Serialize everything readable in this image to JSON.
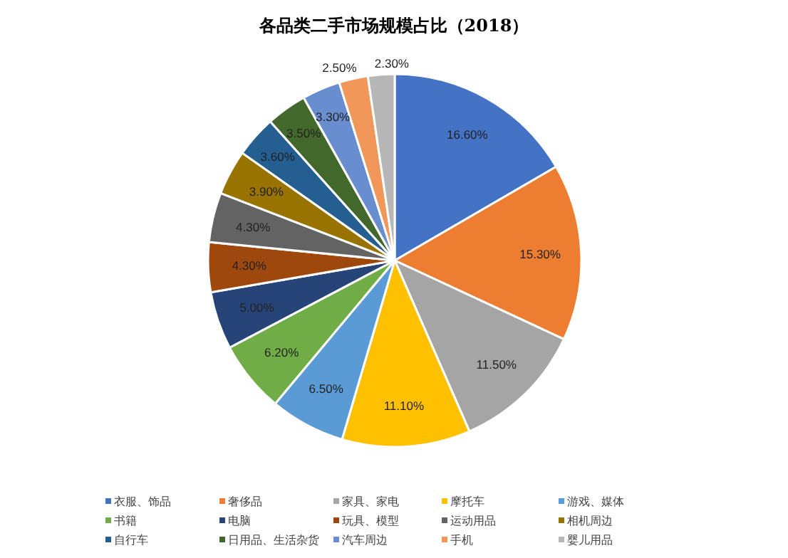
{
  "chart_data": {
    "type": "pie",
    "title": "各品类二手市场规模占比（2018）",
    "categories": [
      "衣服、饰品",
      "奢侈品",
      "家具、家电",
      "摩托车",
      "游戏、媒体",
      "书籍",
      "电脑",
      "玩具、模型",
      "运动用品",
      "相机周边",
      "自行车",
      "日用品、生活杂货",
      "汽车周边",
      "手机",
      "婴儿用品"
    ],
    "values": [
      16.6,
      15.3,
      11.5,
      11.1,
      6.5,
      6.2,
      5.0,
      4.3,
      4.3,
      3.9,
      3.6,
      3.5,
      3.3,
      2.5,
      2.3
    ],
    "value_labels": [
      "16.60%",
      "15.30%",
      "11.50%",
      "11.10%",
      "6.50%",
      "6.20%",
      "5.00%",
      "4.30%",
      "4.30%",
      "3.90%",
      "3.60%",
      "3.50%",
      "3.30%",
      "2.50%",
      "2.30%"
    ],
    "colors": [
      "#4472c4",
      "#ed7d31",
      "#a5a5a5",
      "#ffc000",
      "#5b9bd5",
      "#70ad47",
      "#264478",
      "#9e480e",
      "#636363",
      "#997300",
      "#255e91",
      "#43682b",
      "#698ed0",
      "#f1975a",
      "#b7b7b7"
    ],
    "legend": "bottom"
  }
}
